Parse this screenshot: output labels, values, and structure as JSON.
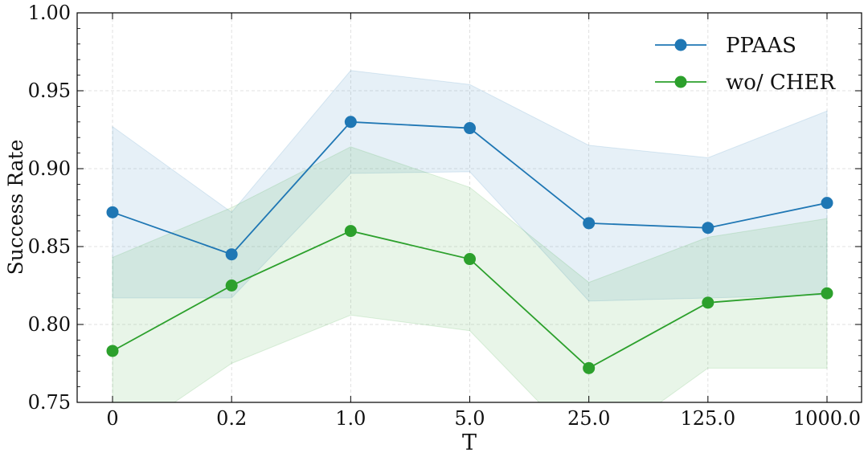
{
  "chart_data": {
    "type": "line",
    "xlabel": "T",
    "ylabel": "Success Rate",
    "categories": [
      "0",
      "0.2",
      "1.0",
      "5.0",
      "25.0",
      "125.0",
      "1000.0"
    ],
    "ylim": [
      0.75,
      1.0
    ],
    "yticks": [
      "0.75",
      "0.80",
      "0.85",
      "0.90",
      "0.95",
      "1.00"
    ],
    "grid": true,
    "legend": "top-right",
    "series": [
      {
        "name": "PPAAS",
        "color": "#1f77b4",
        "values": [
          0.872,
          0.845,
          0.93,
          0.926,
          0.865,
          0.862,
          0.878
        ],
        "upper": [
          0.927,
          0.872,
          0.963,
          0.954,
          0.915,
          0.907,
          0.937
        ],
        "lower": [
          0.817,
          0.817,
          0.897,
          0.898,
          0.815,
          0.817,
          0.819
        ]
      },
      {
        "name": "wo/ CHER",
        "color": "#2ca02c",
        "values": [
          0.783,
          0.825,
          0.86,
          0.842,
          0.772,
          0.814,
          0.82
        ],
        "upper": [
          0.843,
          0.875,
          0.914,
          0.888,
          0.827,
          0.856,
          0.868
        ],
        "lower": [
          0.723,
          0.775,
          0.806,
          0.796,
          0.717,
          0.772,
          0.772
        ]
      }
    ]
  }
}
